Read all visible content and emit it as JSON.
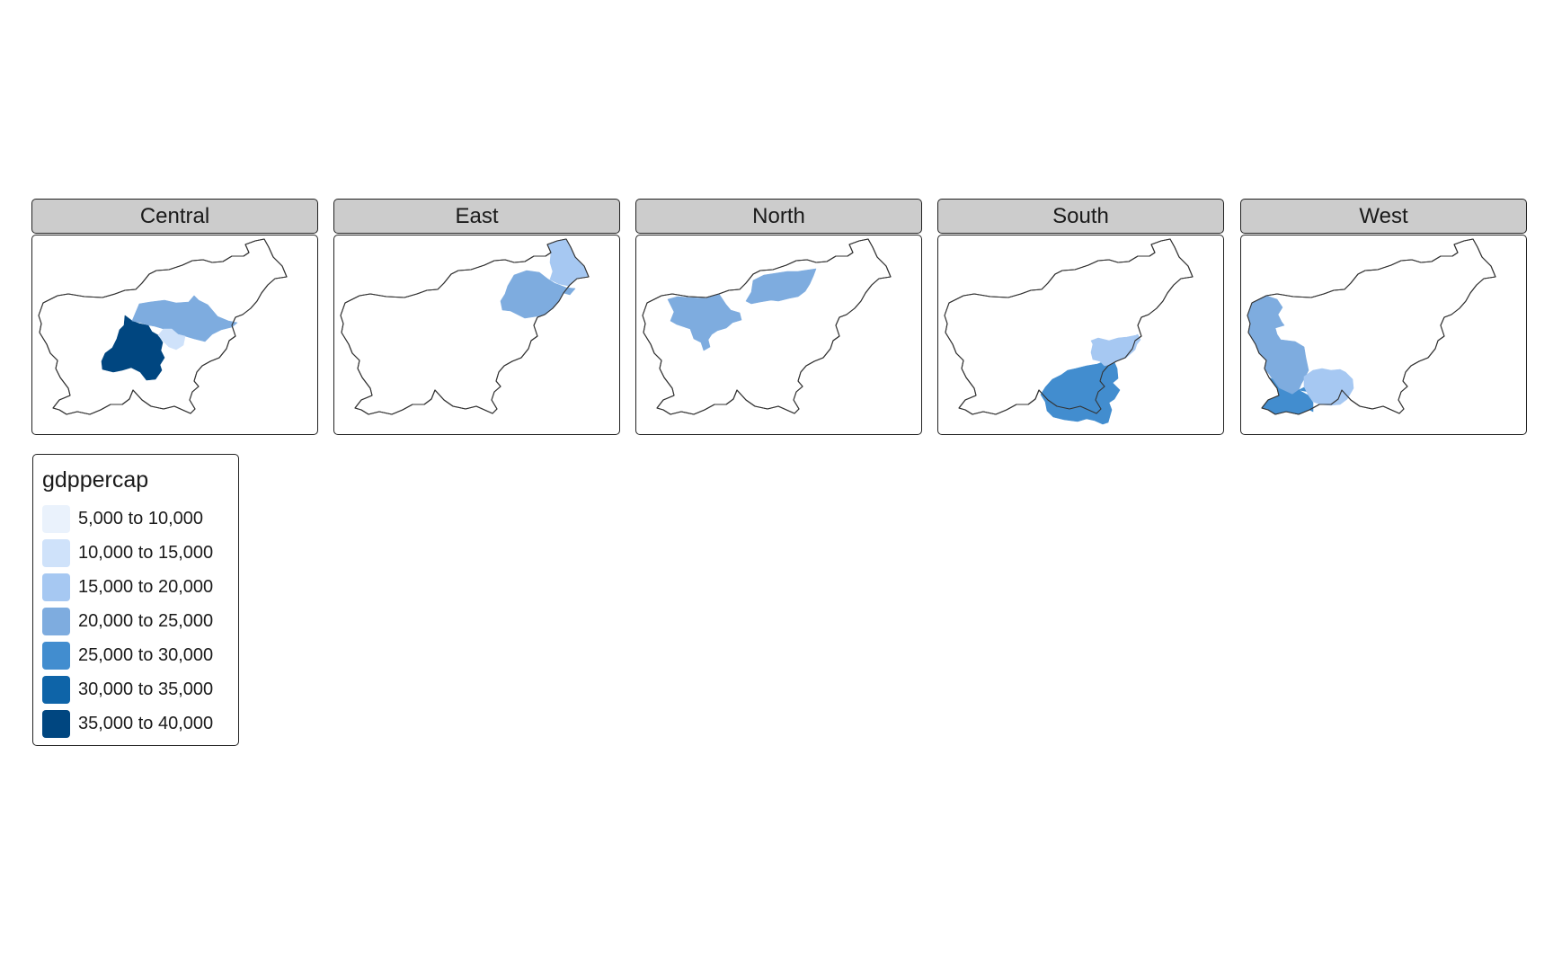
{
  "facets": [
    {
      "label": "Central",
      "regions": [
        {
          "name": "osrednjeslovenska",
          "class": 6
        },
        {
          "name": "savinjska",
          "class": 3
        },
        {
          "name": "zasavska",
          "class": 1
        }
      ]
    },
    {
      "label": "East",
      "regions": [
        {
          "name": "podravska",
          "class": 3
        },
        {
          "name": "pomurska",
          "class": 2
        }
      ]
    },
    {
      "label": "North",
      "regions": [
        {
          "name": "gorenjska",
          "class": 3
        },
        {
          "name": "koroska",
          "class": 3
        }
      ]
    },
    {
      "label": "South",
      "regions": [
        {
          "name": "jugovzhodna",
          "class": 4
        },
        {
          "name": "posavska",
          "class": 2
        }
      ]
    },
    {
      "label": "West",
      "regions": [
        {
          "name": "goriska",
          "class": 3
        },
        {
          "name": "obalno-kraska",
          "class": 4
        },
        {
          "name": "primorsko-notranjska",
          "class": 2
        }
      ]
    }
  ],
  "legend": {
    "title": "gdppercap",
    "items": [
      {
        "label": "5,000 to 10,000",
        "color": "#eaf2fc"
      },
      {
        "label": "10,000 to 15,000",
        "color": "#cfe2fa"
      },
      {
        "label": "15,000 to 20,000",
        "color": "#a6c8f2"
      },
      {
        "label": "20,000 to 25,000",
        "color": "#7eacdf"
      },
      {
        "label": "25,000 to 30,000",
        "color": "#428dcf"
      },
      {
        "label": "30,000 to 35,000",
        "color": "#0e64a8"
      },
      {
        "label": "35,000 to 40,000",
        "color": "#004680"
      }
    ]
  },
  "outline_color": "#333333"
}
